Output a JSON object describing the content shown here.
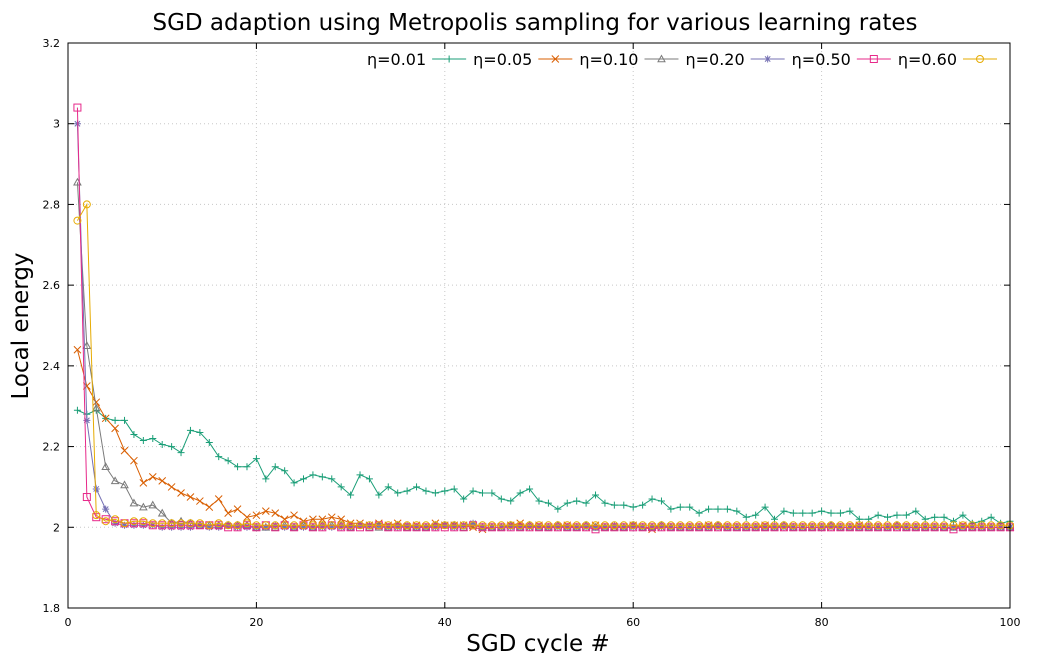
{
  "chart_data": {
    "type": "line",
    "title": "SGD adaption using Metropolis sampling for various learning rates",
    "xlabel": "SGD cycle #",
    "ylabel": "Local energy",
    "xlim": [
      0,
      100
    ],
    "ylim": [
      1.8,
      3.2
    ],
    "x_ticks": [
      0,
      20,
      40,
      60,
      80,
      100
    ],
    "y_ticks": [
      1.8,
      2,
      2.2,
      2.4,
      2.6,
      2.8,
      3,
      3.2
    ],
    "x_tick_labels": [
      "0",
      "20",
      "40",
      "60",
      "80",
      "100"
    ],
    "y_tick_labels": [
      "1.8",
      "2",
      "2.2",
      "2.4",
      "2.6",
      "2.8",
      "3",
      "3.2"
    ],
    "grid": true,
    "legend_position": "top-right",
    "series": [
      {
        "name": "η=0.01",
        "color": "#1a9e77",
        "marker": "plus",
        "x": [
          1,
          2,
          3,
          4,
          5,
          6,
          7,
          8,
          9,
          10,
          11,
          12,
          13,
          14,
          15,
          16,
          17,
          18,
          19,
          20,
          21,
          22,
          23,
          24,
          25,
          26,
          27,
          28,
          29,
          30,
          31,
          32,
          33,
          34,
          35,
          36,
          37,
          38,
          39,
          40,
          41,
          42,
          43,
          44,
          45,
          46,
          47,
          48,
          49,
          50,
          51,
          52,
          53,
          54,
          55,
          56,
          57,
          58,
          59,
          60,
          61,
          62,
          63,
          64,
          65,
          66,
          67,
          68,
          69,
          70,
          71,
          72,
          73,
          74,
          75,
          76,
          77,
          78,
          79,
          80,
          81,
          82,
          83,
          84,
          85,
          86,
          87,
          88,
          89,
          90,
          91,
          92,
          93,
          94,
          95,
          96,
          97,
          98,
          99,
          100
        ],
        "y": [
          2.29,
          2.28,
          2.29,
          2.27,
          2.265,
          2.265,
          2.23,
          2.215,
          2.22,
          2.205,
          2.2,
          2.185,
          2.24,
          2.235,
          2.21,
          2.175,
          2.165,
          2.15,
          2.15,
          2.17,
          2.12,
          2.15,
          2.14,
          2.11,
          2.12,
          2.13,
          2.125,
          2.12,
          2.1,
          2.08,
          2.13,
          2.12,
          2.08,
          2.1,
          2.085,
          2.09,
          2.1,
          2.09,
          2.085,
          2.09,
          2.095,
          2.07,
          2.09,
          2.085,
          2.085,
          2.07,
          2.065,
          2.085,
          2.095,
          2.065,
          2.06,
          2.045,
          2.06,
          2.065,
          2.06,
          2.08,
          2.06,
          2.055,
          2.055,
          2.05,
          2.055,
          2.07,
          2.065,
          2.045,
          2.05,
          2.05,
          2.035,
          2.045,
          2.045,
          2.045,
          2.04,
          2.025,
          2.03,
          2.05,
          2.02,
          2.04,
          2.035,
          2.035,
          2.035,
          2.04,
          2.035,
          2.035,
          2.04,
          2.02,
          2.02,
          2.03,
          2.025,
          2.03,
          2.03,
          2.04,
          2.02,
          2.025,
          2.025,
          2.015,
          2.03,
          2.01,
          2.015,
          2.025,
          2.01,
          2.015
        ]
      },
      {
        "name": "η=0.05",
        "color": "#d95f02",
        "marker": "cross",
        "x": [
          1,
          2,
          3,
          4,
          5,
          6,
          7,
          8,
          9,
          10,
          11,
          12,
          13,
          14,
          15,
          16,
          17,
          18,
          19,
          20,
          21,
          22,
          23,
          24,
          25,
          26,
          27,
          28,
          29,
          30,
          31,
          32,
          33,
          34,
          35,
          36,
          37,
          38,
          39,
          40,
          41,
          42,
          43,
          44,
          45,
          46,
          47,
          48,
          49,
          50,
          51,
          52,
          53,
          54,
          55,
          56,
          57,
          58,
          59,
          60,
          61,
          62,
          63,
          64,
          65,
          66,
          67,
          68,
          69,
          70,
          71,
          72,
          73,
          74,
          75,
          76,
          77,
          78,
          79,
          80,
          81,
          82,
          83,
          84,
          85,
          86,
          87,
          88,
          89,
          90,
          91,
          92,
          93,
          94,
          95,
          96,
          97,
          98,
          99,
          100
        ],
        "y": [
          2.44,
          2.35,
          2.31,
          2.27,
          2.245,
          2.19,
          2.165,
          2.11,
          2.125,
          2.115,
          2.1,
          2.085,
          2.075,
          2.065,
          2.05,
          2.07,
          2.035,
          2.045,
          2.025,
          2.03,
          2.04,
          2.035,
          2.02,
          2.03,
          2.015,
          2.02,
          2.02,
          2.025,
          2.02,
          2.01,
          2.01,
          2.005,
          2.01,
          2.005,
          2.01,
          2.0,
          2.005,
          2.0,
          2.01,
          2.005,
          2.005,
          2.005,
          2.0,
          1.995,
          2.0,
          2.0,
          2.005,
          2.01,
          2.0,
          2.005,
          2.0,
          2.0,
          2.005,
          2.0,
          2.0,
          2.005,
          2.0,
          2.0,
          2.0,
          2.005,
          2.0,
          1.995,
          2.0,
          2.0,
          2.0,
          2.0,
          2.0,
          2.005,
          2.0,
          2.0,
          2.0,
          2.0,
          2.0,
          2.005,
          2.0,
          2.0,
          2.0,
          2.0,
          2.0,
          2.0,
          2.0,
          2.0,
          2.0,
          2.005,
          2.0,
          2.0,
          2.0,
          2.0,
          2.0,
          2.0,
          2.0,
          2.0,
          2.0,
          2.0,
          2.005,
          2.0,
          2.0,
          2.0,
          2.0,
          2.0
        ]
      },
      {
        "name": "η=0.10",
        "color": "#7a7a7a",
        "marker": "triangle",
        "x": [
          1,
          2,
          3,
          4,
          5,
          6,
          7,
          8,
          9,
          10,
          11,
          12,
          13,
          14,
          15,
          16,
          17,
          18,
          19,
          20,
          21,
          22,
          23,
          24,
          25,
          26,
          27,
          28,
          29,
          30,
          31,
          32,
          33,
          34,
          35,
          36,
          37,
          38,
          39,
          40,
          41,
          42,
          43,
          44,
          45,
          46,
          47,
          48,
          49,
          50,
          51,
          52,
          53,
          54,
          55,
          56,
          57,
          58,
          59,
          60,
          61,
          62,
          63,
          64,
          65,
          66,
          67,
          68,
          69,
          70,
          71,
          72,
          73,
          74,
          75,
          76,
          77,
          78,
          79,
          80,
          81,
          82,
          83,
          84,
          85,
          86,
          87,
          88,
          89,
          90,
          91,
          92,
          93,
          94,
          95,
          96,
          97,
          98,
          99,
          100
        ],
        "y": [
          2.855,
          2.45,
          2.295,
          2.15,
          2.115,
          2.105,
          2.06,
          2.05,
          2.055,
          2.035,
          2.01,
          2.015,
          2.01,
          2.005,
          2.005,
          2.005,
          2.005,
          2.005,
          2.005,
          2.0,
          2.0,
          2.0,
          2.005,
          2.0,
          2.005,
          2.0,
          2.005,
          2.005,
          2.005,
          2.0,
          2.005,
          2.0,
          2.0,
          2.0,
          2.005,
          2.0,
          2.0,
          2.0,
          2.005,
          2.005,
          2.005,
          2.0,
          2.005,
          2.0,
          2.0,
          2.0,
          2.005,
          2.0,
          2.005,
          2.0,
          2.0,
          2.005,
          2.0,
          2.0,
          2.005,
          2.0,
          2.0,
          2.0,
          2.0,
          2.005,
          2.0,
          2.0,
          2.005,
          2.0,
          2.0,
          2.0,
          2.0,
          2.0,
          2.005,
          2.0,
          2.0,
          2.0,
          2.0,
          2.0,
          2.0,
          2.005,
          2.0,
          2.0,
          2.0,
          2.0,
          2.005,
          2.0,
          2.0,
          2.0,
          2.0,
          2.0,
          2.0,
          2.005,
          2.0,
          2.0,
          2.0,
          2.0,
          2.0,
          2.0,
          2.0,
          2.0,
          2.0,
          2.0,
          2.0,
          2.0
        ]
      },
      {
        "name": "η=0.20",
        "color": "#7570b3",
        "marker": "star",
        "x": [
          1,
          2,
          3,
          4,
          5,
          6,
          7,
          8,
          9,
          10,
          11,
          12,
          13,
          14,
          15,
          16,
          17,
          18,
          19,
          20,
          21,
          22,
          23,
          24,
          25,
          26,
          27,
          28,
          29,
          30,
          31,
          32,
          33,
          34,
          35,
          36,
          37,
          38,
          39,
          40,
          41,
          42,
          43,
          44,
          45,
          46,
          47,
          48,
          49,
          50,
          51,
          52,
          53,
          54,
          55,
          56,
          57,
          58,
          59,
          60,
          61,
          62,
          63,
          64,
          65,
          66,
          67,
          68,
          69,
          70,
          71,
          72,
          73,
          74,
          75,
          76,
          77,
          78,
          79,
          80,
          81,
          82,
          83,
          84,
          85,
          86,
          87,
          88,
          89,
          90,
          91,
          92,
          93,
          94,
          95,
          96,
          97,
          98,
          99,
          100
        ],
        "y": [
          3.0,
          2.265,
          2.095,
          2.045,
          2.01,
          2.005,
          2.005,
          2.005,
          2.005,
          2.0,
          2.0,
          2.0,
          2.0,
          2.005,
          2.0,
          2.0,
          2.005,
          2.0,
          2.0,
          2.0,
          2.0,
          2.005,
          2.0,
          2.0,
          2.0,
          2.0,
          2.0,
          2.0,
          2.0,
          2.0,
          2.005,
          2.005,
          2.005,
          2.0,
          2.0,
          2.005,
          2.0,
          2.0,
          2.0,
          2.005,
          2.0,
          2.005,
          2.01,
          2.0,
          2.0,
          2.0,
          2.0,
          2.0,
          2.0,
          2.0,
          2.0,
          2.0,
          2.0,
          2.0,
          2.0,
          2.0,
          2.0,
          2.005,
          2.0,
          2.0,
          2.0,
          2.0,
          2.0,
          2.0,
          2.0,
          2.0,
          2.0,
          2.0,
          2.0,
          2.0,
          2.0,
          2.0,
          2.0,
          2.0,
          2.0,
          2.0,
          2.0,
          2.0,
          2.0,
          2.0,
          2.0,
          2.0,
          2.0,
          2.0,
          2.0,
          2.0,
          2.0,
          2.0,
          2.0,
          2.0,
          2.0,
          2.0,
          2.0,
          2.0,
          2.0,
          2.0,
          2.0,
          2.0,
          2.0,
          2.0
        ]
      },
      {
        "name": "η=0.50",
        "color": "#e7298a",
        "marker": "square",
        "x": [
          1,
          2,
          3,
          4,
          5,
          6,
          7,
          8,
          9,
          10,
          11,
          12,
          13,
          14,
          15,
          16,
          17,
          18,
          19,
          20,
          21,
          22,
          23,
          24,
          25,
          26,
          27,
          28,
          29,
          30,
          31,
          32,
          33,
          34,
          35,
          36,
          37,
          38,
          39,
          40,
          41,
          42,
          43,
          44,
          45,
          46,
          47,
          48,
          49,
          50,
          51,
          52,
          53,
          54,
          55,
          56,
          57,
          58,
          59,
          60,
          61,
          62,
          63,
          64,
          65,
          66,
          67,
          68,
          69,
          70,
          71,
          72,
          73,
          74,
          75,
          76,
          77,
          78,
          79,
          80,
          81,
          82,
          83,
          84,
          85,
          86,
          87,
          88,
          89,
          90,
          91,
          92,
          93,
          94,
          95,
          96,
          97,
          98,
          99,
          100
        ],
        "y": [
          3.04,
          2.075,
          2.025,
          2.02,
          2.015,
          2.01,
          2.01,
          2.01,
          2.005,
          2.005,
          2.005,
          2.005,
          2.005,
          2.005,
          2.005,
          2.005,
          2.0,
          2.0,
          2.005,
          2.0,
          2.005,
          2.0,
          2.005,
          2.0,
          2.005,
          2.0,
          2.0,
          2.005,
          2.0,
          2.0,
          2.0,
          2.0,
          2.005,
          2.0,
          2.0,
          2.0,
          2.0,
          2.0,
          2.0,
          2.0,
          2.0,
          2.0,
          2.005,
          2.0,
          2.0,
          2.0,
          2.0,
          2.0,
          2.0,
          2.0,
          2.0,
          2.0,
          2.0,
          2.0,
          2.0,
          1.995,
          2.0,
          2.0,
          2.0,
          2.0,
          2.0,
          2.0,
          2.0,
          2.0,
          2.0,
          2.0,
          2.0,
          2.0,
          2.0,
          2.0,
          2.0,
          2.0,
          2.0,
          2.0,
          2.0,
          2.0,
          2.0,
          2.0,
          2.0,
          2.0,
          2.0,
          2.0,
          2.0,
          2.0,
          2.0,
          2.0,
          2.0,
          2.0,
          2.0,
          2.0,
          2.0,
          2.0,
          2.0,
          1.995,
          2.0,
          2.0,
          2.0,
          2.0,
          2.0,
          2.0
        ]
      },
      {
        "name": "η=0.60",
        "color": "#e6ab02",
        "marker": "circle",
        "x": [
          1,
          2,
          3,
          4,
          5,
          6,
          7,
          8,
          9,
          10,
          11,
          12,
          13,
          14,
          15,
          16,
          17,
          18,
          19,
          20,
          21,
          22,
          23,
          24,
          25,
          26,
          27,
          28,
          29,
          30,
          31,
          32,
          33,
          34,
          35,
          36,
          37,
          38,
          39,
          40,
          41,
          42,
          43,
          44,
          45,
          46,
          47,
          48,
          49,
          50,
          51,
          52,
          53,
          54,
          55,
          56,
          57,
          58,
          59,
          60,
          61,
          62,
          63,
          64,
          65,
          66,
          67,
          68,
          69,
          70,
          71,
          72,
          73,
          74,
          75,
          76,
          77,
          78,
          79,
          80,
          81,
          82,
          83,
          84,
          85,
          86,
          87,
          88,
          89,
          90,
          91,
          92,
          93,
          94,
          95,
          96,
          97,
          98,
          99,
          100
        ],
        "y": [
          2.76,
          2.8,
          2.03,
          2.015,
          2.02,
          2.01,
          2.015,
          2.015,
          2.01,
          2.01,
          2.01,
          2.01,
          2.01,
          2.01,
          2.005,
          2.01,
          2.005,
          2.005,
          2.01,
          2.005,
          2.005,
          2.005,
          2.005,
          2.005,
          2.005,
          2.005,
          2.005,
          2.005,
          2.005,
          2.005,
          2.005,
          2.005,
          2.005,
          2.005,
          2.005,
          2.005,
          2.005,
          2.005,
          2.005,
          2.005,
          2.005,
          2.005,
          2.005,
          2.005,
          2.005,
          2.005,
          2.005,
          2.005,
          2.005,
          2.005,
          2.005,
          2.005,
          2.005,
          2.005,
          2.005,
          2.005,
          2.005,
          2.005,
          2.005,
          2.005,
          2.005,
          2.005,
          2.005,
          2.005,
          2.005,
          2.005,
          2.005,
          2.005,
          2.005,
          2.005,
          2.005,
          2.005,
          2.005,
          2.005,
          2.005,
          2.005,
          2.005,
          2.005,
          2.005,
          2.005,
          2.005,
          2.005,
          2.005,
          2.005,
          2.005,
          2.005,
          2.005,
          2.005,
          2.005,
          2.005,
          2.005,
          2.005,
          2.005,
          2.005,
          2.005,
          2.005,
          2.005,
          2.005,
          2.005,
          2.005
        ]
      }
    ]
  }
}
